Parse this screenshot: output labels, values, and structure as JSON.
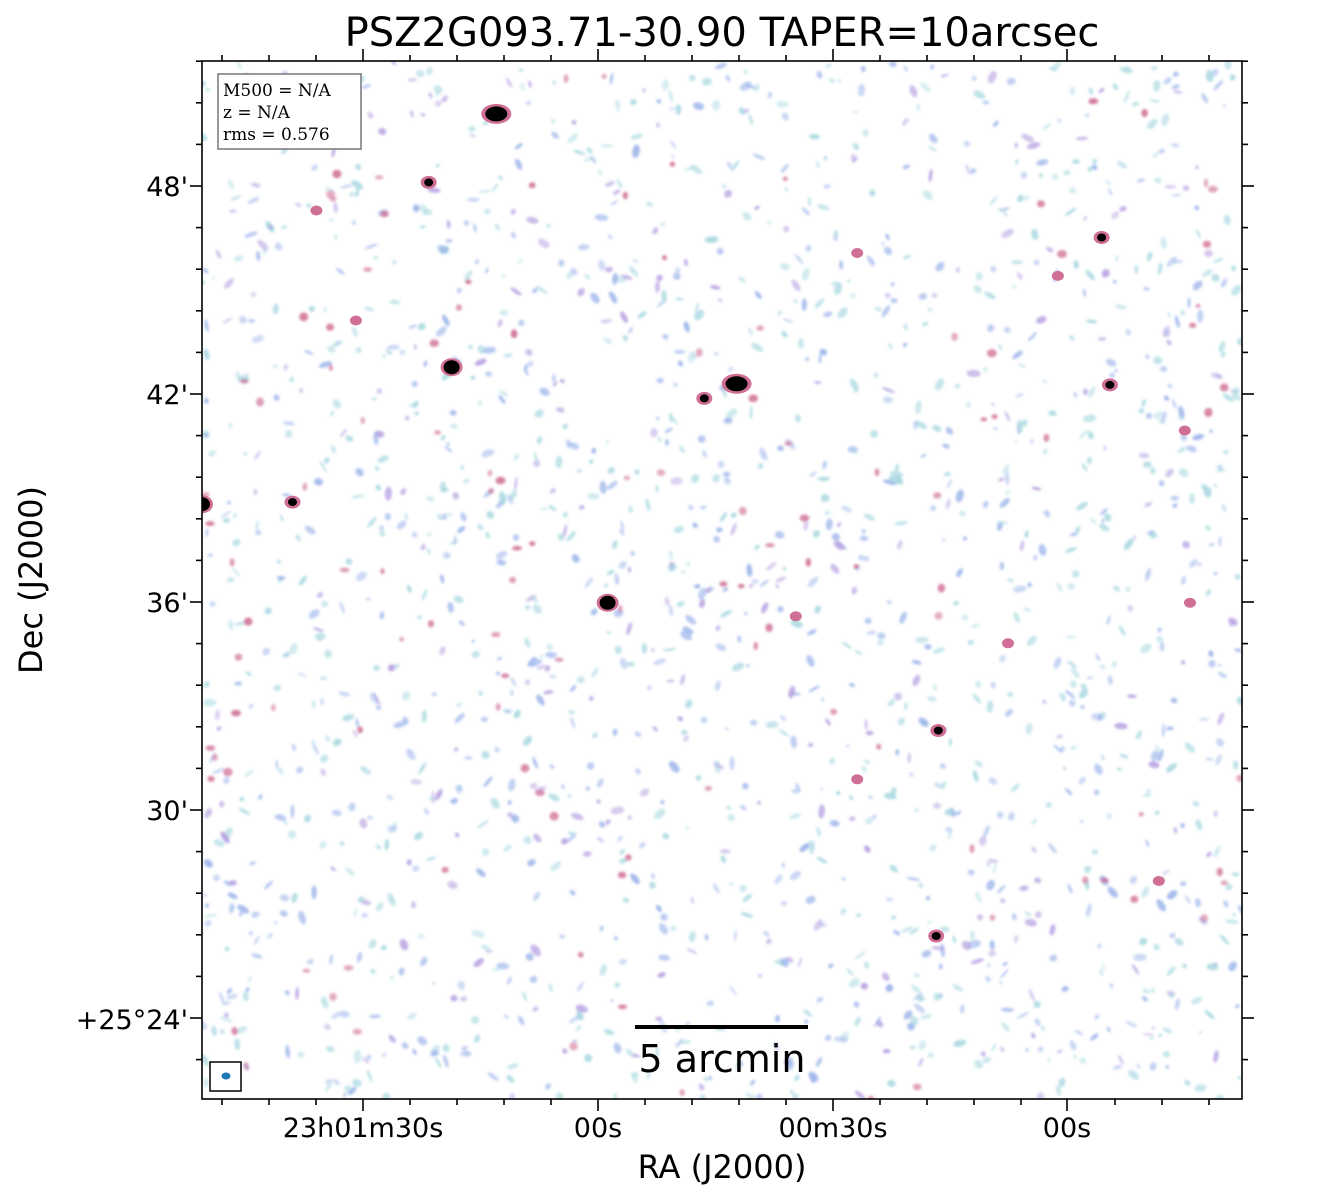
{
  "title": "PSZ2G093.71-30.90 TAPER=10arcsec",
  "xlabel": "RA (J2000)",
  "ylabel": "Dec (J2000)",
  "x_ticks": [
    "23h01m30s",
    "00s",
    "00m30s",
    "00s"
  ],
  "y_ticks": [
    "48'",
    "42'",
    "36'",
    "30'",
    "+25°24'"
  ],
  "info": {
    "m500": "M500 = N/A",
    "z": "z = N/A",
    "rms": "rms = 0.576"
  },
  "scalebar_label": "5 arcmin",
  "colors": {
    "noise_light": "#a8d8e0",
    "noise_mid": "#9cb4ea",
    "noise_violet": "#b49ee0",
    "source_pink": "#cf6f95",
    "source_core": "#000000",
    "beam": "#1f77b4"
  },
  "sources": [
    {
      "ra_frac": 0.283,
      "dec_frac": 0.051,
      "strength": 3
    },
    {
      "ra_frac": 0.514,
      "dec_frac": 0.311,
      "strength": 3
    },
    {
      "ra_frac": 0.24,
      "dec_frac": 0.295,
      "strength": 2
    },
    {
      "ra_frac": 0.39,
      "dec_frac": 0.522,
      "strength": 2
    },
    {
      "ra_frac": 0.865,
      "dec_frac": 0.17,
      "strength": 1
    },
    {
      "ra_frac": 0.0,
      "dec_frac": 0.427,
      "strength": 2
    },
    {
      "ra_frac": 0.218,
      "dec_frac": 0.117,
      "strength": 1
    },
    {
      "ra_frac": 0.087,
      "dec_frac": 0.425,
      "strength": 1
    },
    {
      "ra_frac": 0.706,
      "dec_frac": 0.843,
      "strength": 1
    },
    {
      "ra_frac": 0.873,
      "dec_frac": 0.312,
      "strength": 1
    },
    {
      "ra_frac": 0.708,
      "dec_frac": 0.645,
      "strength": 1
    },
    {
      "ra_frac": 0.483,
      "dec_frac": 0.325,
      "strength": 1
    },
    {
      "ra_frac": 0.571,
      "dec_frac": 0.535,
      "strength": 0
    },
    {
      "ra_frac": 0.63,
      "dec_frac": 0.692,
      "strength": 0
    },
    {
      "ra_frac": 0.775,
      "dec_frac": 0.561,
      "strength": 0
    },
    {
      "ra_frac": 0.945,
      "dec_frac": 0.356,
      "strength": 0
    },
    {
      "ra_frac": 0.823,
      "dec_frac": 0.207,
      "strength": 0
    },
    {
      "ra_frac": 0.63,
      "dec_frac": 0.185,
      "strength": 0
    },
    {
      "ra_frac": 0.148,
      "dec_frac": 0.25,
      "strength": 0
    },
    {
      "ra_frac": 0.11,
      "dec_frac": 0.144,
      "strength": 0
    },
    {
      "ra_frac": 0.95,
      "dec_frac": 0.522,
      "strength": 0
    },
    {
      "ra_frac": 0.92,
      "dec_frac": 0.79,
      "strength": 0
    }
  ]
}
